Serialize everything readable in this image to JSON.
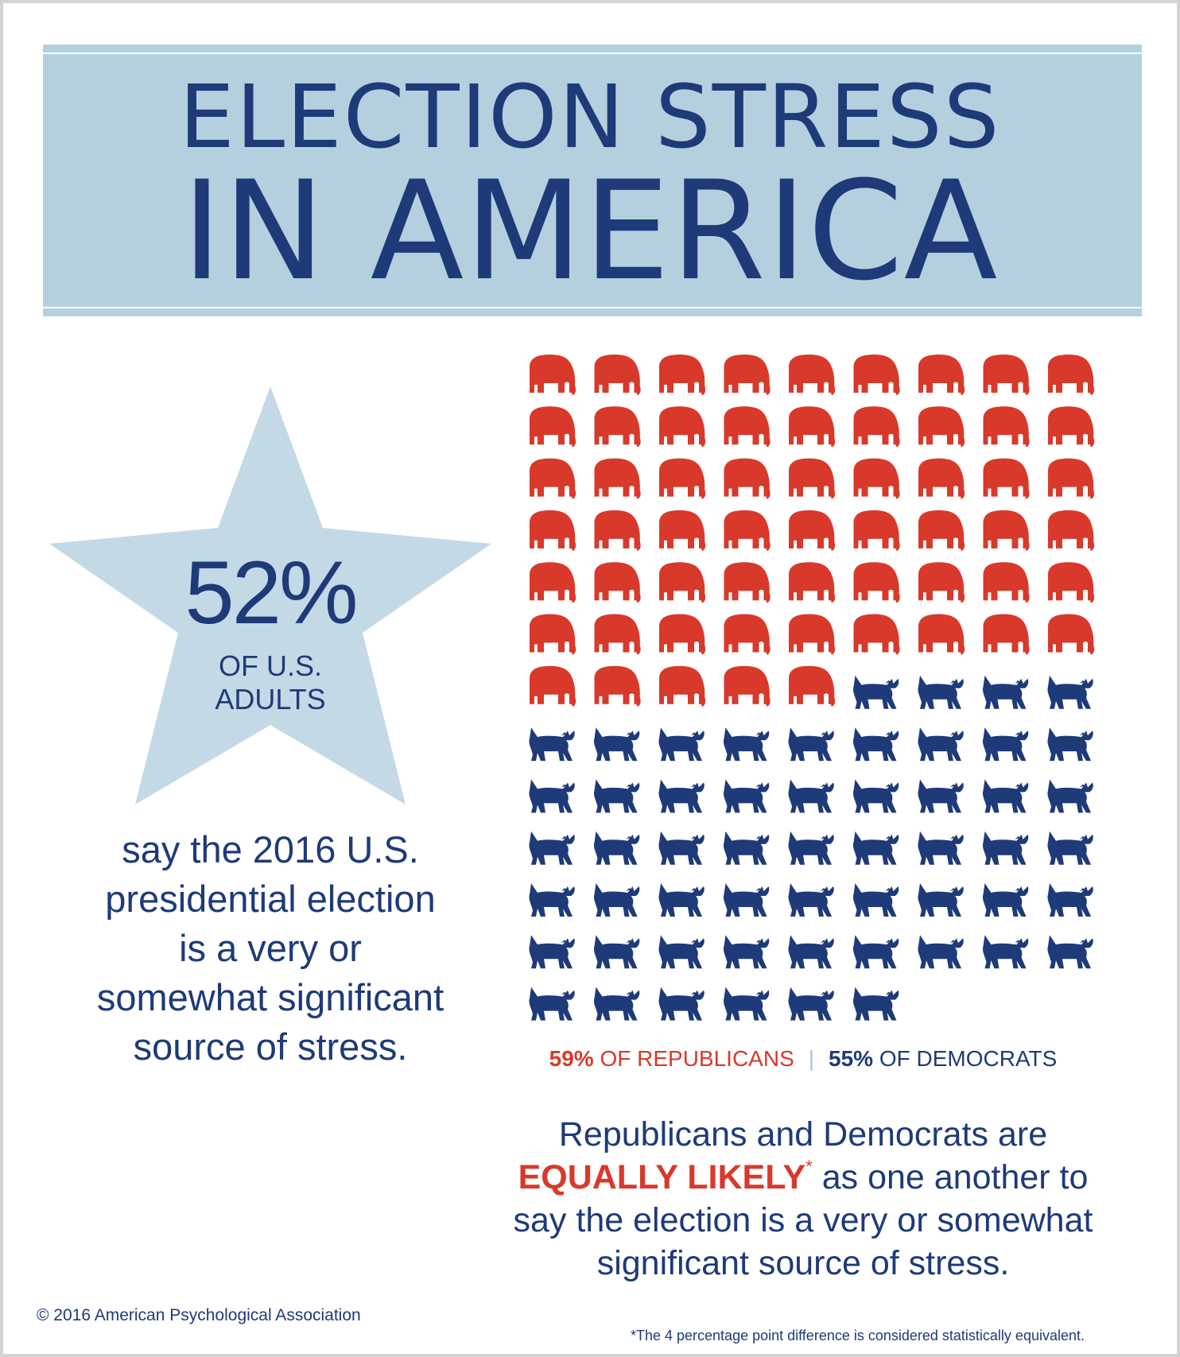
{
  "title": {
    "line1": "ELECTION STRESS",
    "line2": "IN AMERICA"
  },
  "star": {
    "percent": "52%",
    "line1": "OF U.S.",
    "line2": "ADULTS"
  },
  "left_text": "say the 2016 U.S. presidential election is a very or somewhat significant source of stress.",
  "chart_data": {
    "type": "pictograph",
    "series": [
      {
        "name": "59% OF REPUBLICANS",
        "icon": "elephant-icon",
        "value": 59,
        "color": "#d8392b"
      },
      {
        "name": "55% OF DEMOCRATS",
        "icon": "donkey-icon",
        "value": 55,
        "color": "#1e3a78"
      }
    ],
    "columns": 9
  },
  "legend": {
    "rep_pct": "59%",
    "rep_label": " OF REPUBLICANS",
    "dem_pct": "55%",
    "dem_label": " OF DEMOCRATS"
  },
  "right_text": {
    "line1": "Republicans and Democrats are",
    "highlight": "EQUALLY LIKELY",
    "asterisk": "*",
    "line2_rest": " as one another to",
    "line3": "say the election is a very or somewhat",
    "line4": "significant source of stress."
  },
  "copyright": "© 2016 American Psychological Association",
  "footnote": "*The 4 percentage point difference is considered statistically equivalent.",
  "colors": {
    "navy": "#1e3a78",
    "red": "#d8392b",
    "light_blue": "#b4d0de",
    "star_blue": "#c4d9e6"
  }
}
